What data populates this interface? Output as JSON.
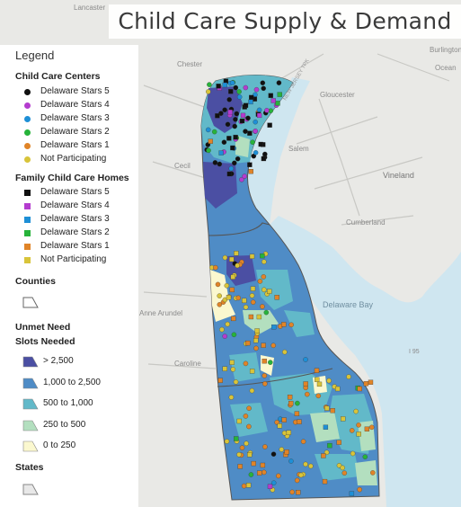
{
  "title": "Child Care Supply & Demand",
  "legend": {
    "title": "Legend",
    "centers_heading": "Child Care Centers",
    "homes_heading": "Family Child Care Homes",
    "counties_heading": "Counties",
    "unmet_heading": "Unmet Need",
    "slots_heading": "Slots Needed",
    "states_heading": "States",
    "star_levels": [
      {
        "label": "Delaware Stars 5",
        "color": "#111111"
      },
      {
        "label": "Delaware Stars 4",
        "color": "#b43ccf"
      },
      {
        "label": "Delaware Stars 3",
        "color": "#1e8fd6"
      },
      {
        "label": "Delaware Stars 2",
        "color": "#27b33a"
      },
      {
        "label": "Delaware Stars 1",
        "color": "#e08428"
      },
      {
        "label": "Not Participating",
        "color": "#d8c43a"
      }
    ],
    "slot_classes": [
      {
        "label": "> 2,500",
        "color": "#4b4fa3"
      },
      {
        "label": "1,000 to 2,500",
        "color": "#4f8cc6"
      },
      {
        "label": "500 to 1,000",
        "color": "#62b9c9"
      },
      {
        "label": "250 to 500",
        "color": "#b3dfbf"
      },
      {
        "label": "0 to 250",
        "color": "#fbf8cf"
      }
    ]
  },
  "place_labels": {
    "lancaster": "Lancaster",
    "chester": "Chester",
    "gloucester": "Gloucester",
    "salem": "Salem",
    "vineland": "Vineland",
    "cecil": "Cecil",
    "cumberland": "Cumberland",
    "delaware_bay": "Delaware Bay",
    "anne_arundel": "Anne Arundel",
    "caroline": "Caroline",
    "burlington": "Burlington",
    "ocean": "Ocean",
    "i95": "I 95",
    "nj_turnpike": "NEW JERSEY TPK"
  },
  "colors": {
    "water": "#cfe6f0",
    "land": "#e9e9e6",
    "county_border": "#555555"
  }
}
